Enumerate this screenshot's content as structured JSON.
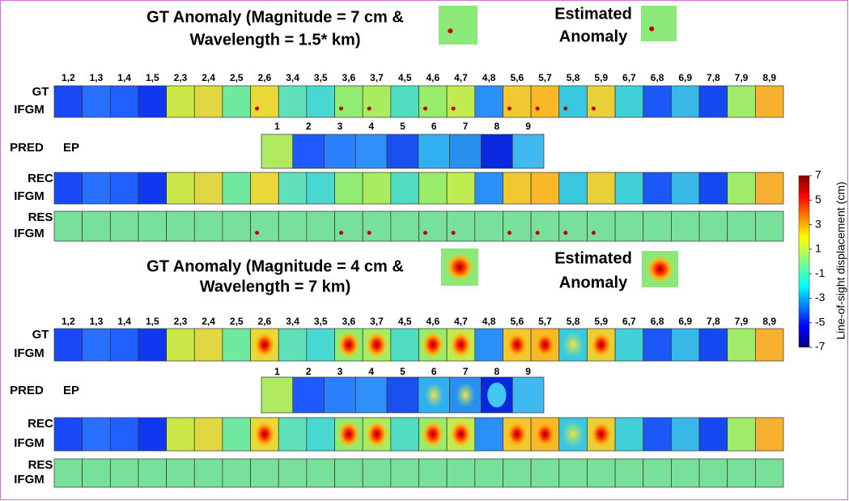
{
  "panels": [
    {
      "title_line1": "GT Anomaly (Magnitude = 7 cm &",
      "title_line2": "Wavelength = 1.5* km)",
      "estimated_line1": "Estimated",
      "estimated_line2": "Anomaly"
    },
    {
      "title_line1": "GT Anomaly (Magnitude = 4 cm &",
      "title_line2": "Wavelength = 7 km)",
      "estimated_line1": "Estimated",
      "estimated_line2": "Anomaly"
    }
  ],
  "pairs": [
    "1,2",
    "1,3",
    "1,4",
    "1,5",
    "2,3",
    "2,4",
    "2,5",
    "2,6",
    "3,4",
    "3,5",
    "3,6",
    "3,7",
    "4,5",
    "4,6",
    "4,7",
    "4,8",
    "5,6",
    "5,7",
    "5,8",
    "5,9",
    "6,7",
    "6,8",
    "6,9",
    "7,8",
    "7,9",
    "8,9"
  ],
  "epochs": [
    "1",
    "2",
    "3",
    "4",
    "5",
    "6",
    "7",
    "8",
    "9"
  ],
  "row_labels": {
    "gt": [
      "GT",
      "IFGM"
    ],
    "pred": [
      "PRED",
      "EP"
    ],
    "rec": [
      "REC",
      "IFGM"
    ],
    "res": [
      "RES",
      "IFGM"
    ]
  },
  "colorbar": {
    "label": "Line-of-sight displacement (cm)",
    "lim": [
      -7,
      7
    ],
    "ticks": [
      7,
      5,
      3,
      1,
      -1,
      -3,
      -5,
      -7
    ]
  }
}
